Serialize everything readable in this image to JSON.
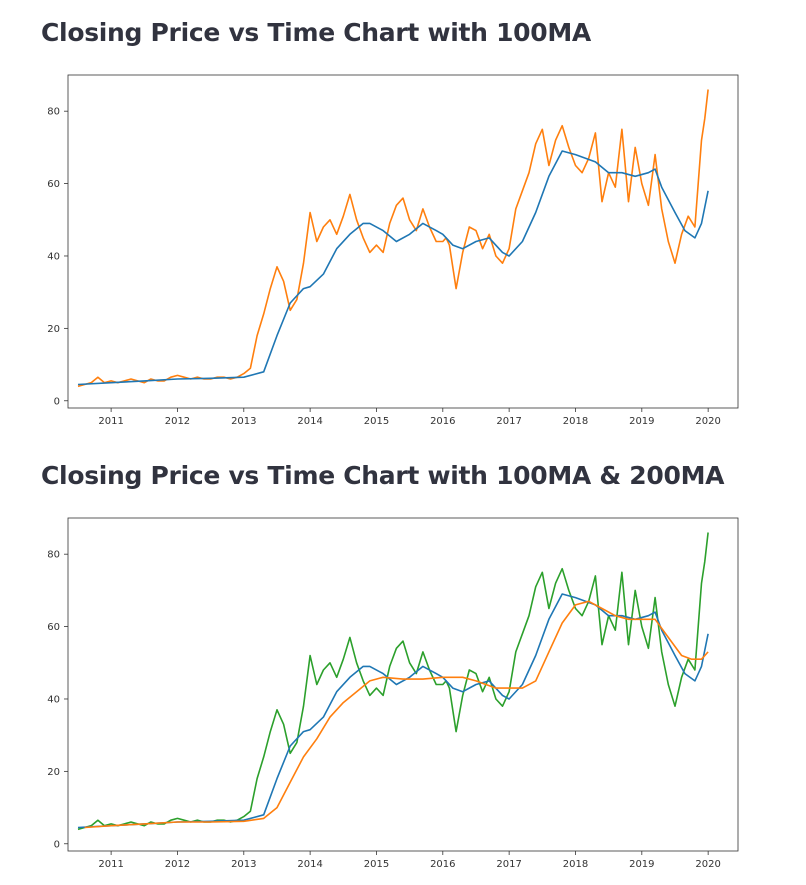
{
  "page": {
    "title_1": "Closing Price vs Time Chart with 100MA",
    "title_2": "Closing Price vs Time Chart with 100MA & 200MA"
  },
  "chart_data": [
    {
      "type": "line",
      "title": "",
      "xlabel": "",
      "ylabel": "",
      "x_ticks": [
        "2011",
        "2012",
        "2013",
        "2014",
        "2015",
        "2016",
        "2017",
        "2018",
        "2019",
        "2020"
      ],
      "y_ticks": [
        0,
        20,
        40,
        60,
        80
      ],
      "xlim": [
        2010.35,
        2020.45
      ],
      "ylim": [
        -2,
        90
      ],
      "grid": false,
      "series": [
        {
          "color": "#ff7f0e",
          "x": [
            2010.5,
            2010.6,
            2010.7,
            2010.8,
            2010.9,
            2011.0,
            2011.1,
            2011.2,
            2011.3,
            2011.4,
            2011.5,
            2011.6,
            2011.7,
            2011.8,
            2011.9,
            2012.0,
            2012.1,
            2012.2,
            2012.3,
            2012.4,
            2012.5,
            2012.6,
            2012.7,
            2012.8,
            2012.9,
            2013.0,
            2013.1,
            2013.2,
            2013.3,
            2013.4,
            2013.5,
            2013.6,
            2013.7,
            2013.8,
            2013.9,
            2014.0,
            2014.1,
            2014.2,
            2014.3,
            2014.4,
            2014.5,
            2014.6,
            2014.7,
            2014.8,
            2014.9,
            2015.0,
            2015.1,
            2015.2,
            2015.3,
            2015.4,
            2015.5,
            2015.6,
            2015.7,
            2015.8,
            2015.9,
            2016.0,
            2016.05,
            2016.1,
            2016.2,
            2016.3,
            2016.4,
            2016.5,
            2016.6,
            2016.7,
            2016.8,
            2016.9,
            2017.0,
            2017.1,
            2017.2,
            2017.3,
            2017.4,
            2017.5,
            2017.6,
            2017.7,
            2017.8,
            2017.9,
            2018.0,
            2018.1,
            2018.2,
            2018.3,
            2018.4,
            2018.5,
            2018.6,
            2018.7,
            2018.8,
            2018.9,
            2019.0,
            2019.1,
            2019.2,
            2019.3,
            2019.4,
            2019.5,
            2019.6,
            2019.7,
            2019.8,
            2019.85,
            2019.9,
            2019.95,
            2020.0
          ],
          "values": [
            4,
            4.5,
            5,
            6.5,
            5,
            5.5,
            5,
            5.5,
            6,
            5.5,
            5,
            6,
            5.5,
            5.5,
            6.5,
            7,
            6.5,
            6,
            6.5,
            6,
            6,
            6.5,
            6.5,
            6,
            6.5,
            7.5,
            9,
            18,
            24,
            31,
            37,
            33,
            25,
            28,
            38,
            52,
            44,
            48,
            50,
            46,
            51,
            57,
            50,
            45,
            41,
            43,
            41,
            49,
            54,
            56,
            50,
            47,
            53,
            48,
            44,
            44,
            45,
            43,
            31,
            41,
            48,
            47,
            42,
            46,
            40,
            38,
            42,
            53,
            58,
            63,
            71,
            75,
            65,
            72,
            76,
            70,
            65,
            63,
            67,
            74,
            55,
            63,
            59,
            75,
            55,
            70,
            60,
            54,
            68,
            53,
            44,
            38,
            46,
            51,
            48,
            60,
            72,
            78,
            86
          ]
        },
        {
          "color": "#1f77b4",
          "x": [
            2010.5,
            2011.0,
            2011.5,
            2012.0,
            2012.5,
            2013.0,
            2013.3,
            2013.5,
            2013.7,
            2013.9,
            2014.0,
            2014.2,
            2014.4,
            2014.6,
            2014.8,
            2014.9,
            2015.1,
            2015.3,
            2015.5,
            2015.7,
            2015.9,
            2016.0,
            2016.15,
            2016.3,
            2016.5,
            2016.7,
            2016.9,
            2017.0,
            2017.2,
            2017.4,
            2017.6,
            2017.8,
            2018.0,
            2018.3,
            2018.5,
            2018.7,
            2018.9,
            2019.1,
            2019.2,
            2019.3,
            2019.5,
            2019.65,
            2019.8,
            2019.9,
            2020.0
          ],
          "values": [
            4.5,
            5,
            5.5,
            6,
            6.2,
            6.5,
            8,
            18,
            27,
            31,
            31.5,
            35,
            42,
            46,
            49,
            49,
            47,
            44,
            46,
            49,
            47,
            46,
            43,
            42,
            44,
            45,
            41,
            40,
            44,
            52,
            62,
            69,
            68,
            66,
            63,
            63,
            62,
            63,
            64,
            59,
            52,
            47,
            45,
            49,
            58
          ]
        }
      ]
    },
    {
      "type": "line",
      "title": "",
      "xlabel": "",
      "ylabel": "",
      "x_ticks": [
        "2011",
        "2012",
        "2013",
        "2014",
        "2015",
        "2016",
        "2017",
        "2018",
        "2019",
        "2020"
      ],
      "y_ticks": [
        0,
        20,
        40,
        60,
        80
      ],
      "xlim": [
        2010.35,
        2020.45
      ],
      "ylim": [
        -2,
        90
      ],
      "grid": false,
      "series": [
        {
          "color": "#2ca02c",
          "x": [
            2010.5,
            2010.6,
            2010.7,
            2010.8,
            2010.9,
            2011.0,
            2011.1,
            2011.2,
            2011.3,
            2011.4,
            2011.5,
            2011.6,
            2011.7,
            2011.8,
            2011.9,
            2012.0,
            2012.1,
            2012.2,
            2012.3,
            2012.4,
            2012.5,
            2012.6,
            2012.7,
            2012.8,
            2012.9,
            2013.0,
            2013.1,
            2013.2,
            2013.3,
            2013.4,
            2013.5,
            2013.6,
            2013.7,
            2013.8,
            2013.9,
            2014.0,
            2014.1,
            2014.2,
            2014.3,
            2014.4,
            2014.5,
            2014.6,
            2014.7,
            2014.8,
            2014.9,
            2015.0,
            2015.1,
            2015.2,
            2015.3,
            2015.4,
            2015.5,
            2015.6,
            2015.7,
            2015.8,
            2015.9,
            2016.0,
            2016.05,
            2016.1,
            2016.2,
            2016.3,
            2016.4,
            2016.5,
            2016.6,
            2016.7,
            2016.8,
            2016.9,
            2017.0,
            2017.1,
            2017.2,
            2017.3,
            2017.4,
            2017.5,
            2017.6,
            2017.7,
            2017.8,
            2017.9,
            2018.0,
            2018.1,
            2018.2,
            2018.3,
            2018.4,
            2018.5,
            2018.6,
            2018.7,
            2018.8,
            2018.9,
            2019.0,
            2019.1,
            2019.2,
            2019.3,
            2019.4,
            2019.5,
            2019.6,
            2019.7,
            2019.8,
            2019.85,
            2019.9,
            2019.95,
            2020.0
          ],
          "values": [
            4,
            4.5,
            5,
            6.5,
            5,
            5.5,
            5,
            5.5,
            6,
            5.5,
            5,
            6,
            5.5,
            5.5,
            6.5,
            7,
            6.5,
            6,
            6.5,
            6,
            6,
            6.5,
            6.5,
            6,
            6.5,
            7.5,
            9,
            18,
            24,
            31,
            37,
            33,
            25,
            28,
            38,
            52,
            44,
            48,
            50,
            46,
            51,
            57,
            50,
            45,
            41,
            43,
            41,
            49,
            54,
            56,
            50,
            47,
            53,
            48,
            44,
            44,
            45,
            43,
            31,
            41,
            48,
            47,
            42,
            46,
            40,
            38,
            42,
            53,
            58,
            63,
            71,
            75,
            65,
            72,
            76,
            70,
            65,
            63,
            67,
            74,
            55,
            63,
            59,
            75,
            55,
            70,
            60,
            54,
            68,
            53,
            44,
            38,
            46,
            51,
            48,
            60,
            72,
            78,
            86
          ]
        },
        {
          "color": "#1f77b4",
          "x": [
            2010.5,
            2011.0,
            2011.5,
            2012.0,
            2012.5,
            2013.0,
            2013.3,
            2013.5,
            2013.7,
            2013.9,
            2014.0,
            2014.2,
            2014.4,
            2014.6,
            2014.8,
            2014.9,
            2015.1,
            2015.3,
            2015.5,
            2015.7,
            2015.9,
            2016.0,
            2016.15,
            2016.3,
            2016.5,
            2016.7,
            2016.9,
            2017.0,
            2017.2,
            2017.4,
            2017.6,
            2017.8,
            2018.0,
            2018.3,
            2018.5,
            2018.7,
            2018.9,
            2019.1,
            2019.2,
            2019.3,
            2019.5,
            2019.65,
            2019.8,
            2019.9,
            2020.0
          ],
          "values": [
            4.5,
            5,
            5.5,
            6,
            6.2,
            6.5,
            8,
            18,
            27,
            31,
            31.5,
            35,
            42,
            46,
            49,
            49,
            47,
            44,
            46,
            49,
            47,
            46,
            43,
            42,
            44,
            45,
            41,
            40,
            44,
            52,
            62,
            69,
            68,
            66,
            63,
            63,
            62,
            63,
            64,
            59,
            52,
            47,
            45,
            49,
            58
          ]
        },
        {
          "color": "#ff7f0e",
          "x": [
            2010.6,
            2011.0,
            2011.5,
            2012.0,
            2012.5,
            2013.0,
            2013.3,
            2013.5,
            2013.7,
            2013.9,
            2014.1,
            2014.3,
            2014.5,
            2014.7,
            2014.9,
            2015.1,
            2015.4,
            2015.7,
            2016.0,
            2016.3,
            2016.5,
            2016.8,
            2017.0,
            2017.2,
            2017.4,
            2017.6,
            2017.8,
            2018.0,
            2018.2,
            2018.4,
            2018.6,
            2018.8,
            2019.0,
            2019.2,
            2019.4,
            2019.6,
            2019.75,
            2019.9,
            2020.0
          ],
          "values": [
            4.5,
            5,
            5.5,
            6,
            6,
            6.2,
            7,
            10,
            17,
            24,
            29,
            35,
            39,
            42,
            45,
            46,
            45.5,
            45.5,
            46,
            46,
            45,
            43,
            43,
            43,
            45,
            53,
            61,
            66,
            67,
            65,
            63,
            62,
            62,
            62,
            57,
            52,
            51,
            51,
            53
          ]
        }
      ]
    }
  ]
}
